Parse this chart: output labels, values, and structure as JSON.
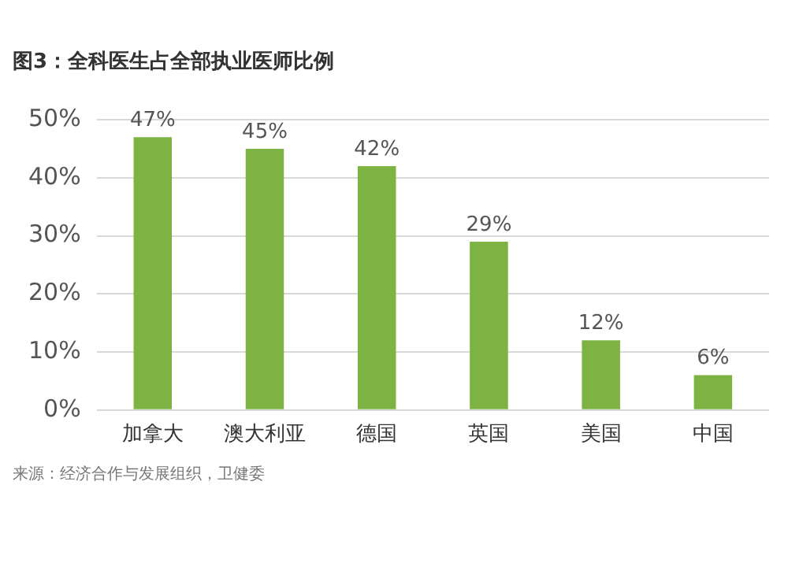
{
  "chart_data": {
    "type": "bar",
    "title": "图3：全科医生占全部执业医师比例",
    "categories": [
      "加拿大",
      "澳大利亚",
      "德国",
      "英国",
      "美国",
      "中国"
    ],
    "values": [
      47,
      45,
      42,
      29,
      12,
      6
    ],
    "value_labels": [
      "47%",
      "45%",
      "42%",
      "29%",
      "12%",
      "6%"
    ],
    "color": "#7cb342",
    "ylim": [
      0,
      50
    ],
    "yticks": [
      {
        "value": 0,
        "label": "0%"
      },
      {
        "value": 10,
        "label": "10%"
      },
      {
        "value": 20,
        "label": "20%"
      },
      {
        "value": 30,
        "label": "30%"
      },
      {
        "value": 40,
        "label": "40%"
      },
      {
        "value": 50,
        "label": "50%"
      }
    ],
    "grid": "y",
    "legend": false,
    "annotations": [
      "来源：经济合作与发展组织，卫健委"
    ]
  }
}
